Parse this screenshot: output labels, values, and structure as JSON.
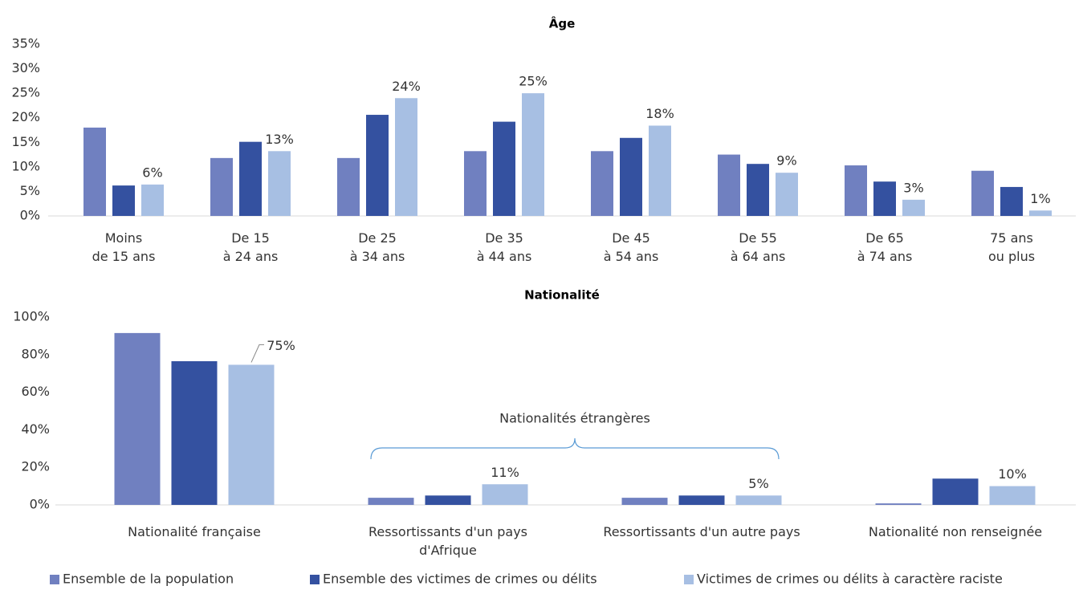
{
  "chart_data": [
    {
      "type": "bar",
      "title": "Âge",
      "categories": [
        [
          "Moins",
          "de 15 ans"
        ],
        [
          "De 15",
          "à 24 ans"
        ],
        [
          "De 25",
          "à 34 ans"
        ],
        [
          "De 35",
          "à 44 ans"
        ],
        [
          "De 45",
          "à 54 ans"
        ],
        [
          "De 55",
          "à 64 ans"
        ],
        [
          "De 65",
          "à 74 ans"
        ],
        [
          "75 ans",
          "ou plus"
        ]
      ],
      "series": [
        {
          "name": "Ensemble de la population",
          "color": "#7080c0",
          "values": [
            18,
            11.8,
            11.8,
            13.2,
            13.2,
            12.5,
            10.3,
            9.2
          ]
        },
        {
          "name": "Ensemble des victimes de crimes ou délits",
          "color": "#3451a0",
          "values": [
            6.2,
            15.1,
            20.6,
            19.2,
            15.9,
            10.6,
            7,
            5.9
          ]
        },
        {
          "name": "Victimes de crimes ou délits à caractère raciste",
          "color": "#a7bfe3",
          "values": [
            6.4,
            13.2,
            24,
            25,
            18.4,
            8.8,
            3.3,
            1.1
          ],
          "value_labels": [
            "6%",
            "13%",
            "24%",
            "25%",
            "18%",
            "9%",
            "3%",
            "1%"
          ]
        }
      ],
      "ylim": [
        0,
        35
      ],
      "yticks": [
        {
          "value": 0,
          "label": "0%"
        },
        {
          "value": 5,
          "label": "5%"
        },
        {
          "value": 10,
          "label": "10%"
        },
        {
          "value": 15,
          "label": "15%"
        },
        {
          "value": 20,
          "label": "20%"
        },
        {
          "value": 25,
          "label": "25%"
        },
        {
          "value": 30,
          "label": "30%"
        },
        {
          "value": 35,
          "label": "35%"
        }
      ],
      "legend": "bottom"
    },
    {
      "type": "bar",
      "title": "Nationalité",
      "categories": [
        [
          "Nationalité française"
        ],
        [
          "Ressortissants d'un pays",
          "d'Afrique"
        ],
        [
          "Ressortissants d'un autre pays"
        ],
        [
          "Nationalité non renseignée"
        ]
      ],
      "series": [
        {
          "color": "#7080c0",
          "values": [
            91.5,
            3.8,
            3.8,
            0.8
          ]
        },
        {
          "color": "#3451a0",
          "values": [
            76.5,
            5,
            5,
            14
          ]
        },
        {
          "color": "#a7bfe3",
          "values": [
            74.6,
            11,
            5,
            10
          ],
          "value_labels": [
            "75%",
            "11%",
            "5%",
            "10%"
          ]
        }
      ],
      "ylim": [
        0,
        100
      ],
      "yticks": [
        {
          "value": 0,
          "label": "0%"
        },
        {
          "value": 20,
          "label": "20%"
        },
        {
          "value": 40,
          "label": "40%"
        },
        {
          "value": 60,
          "label": "60%"
        },
        {
          "value": 80,
          "label": "80%"
        },
        {
          "value": 100,
          "label": "100%"
        }
      ],
      "annotation": "Nationalités étrangères"
    }
  ]
}
